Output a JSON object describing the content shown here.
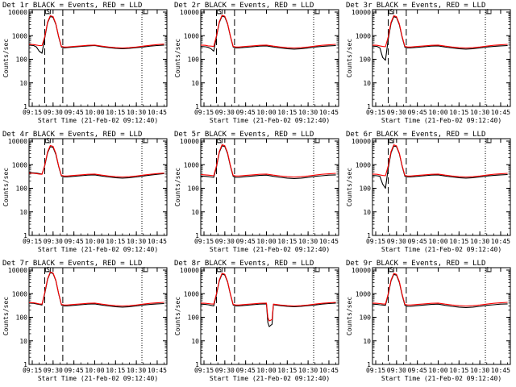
{
  "time_label": "Start Time (21-Feb-02 09:12:40)",
  "ylabel": "Counts/sec",
  "x_ticks": [
    "09:15",
    "09:30",
    "09:45",
    "10:00",
    "10:15",
    "10:30",
    "10:45"
  ],
  "y_ticks": [
    "1",
    "10",
    "100",
    "1000",
    "10000"
  ],
  "colors": {
    "events": "#000000",
    "lld": "#ff0000"
  },
  "markers": {
    "left_box_label": "S",
    "right_box_label": "L"
  },
  "chart_data": [
    {
      "type": "line",
      "title": "Det 1r BLACK = Events, RED = LLD",
      "y_scale": "log",
      "ylim": [
        1,
        10000
      ],
      "x": [
        "09:12:40",
        "09:16",
        "09:18",
        "09:20",
        "09:22",
        "09:24",
        "09:26",
        "09:28",
        "09:30",
        "09:32",
        "09:34",
        "09:36",
        "09:38",
        "09:40",
        "09:45",
        "09:50",
        "09:55",
        "10:00",
        "10:05",
        "10:10",
        "10:15",
        "10:20",
        "10:25",
        "10:30",
        "10:35",
        "10:40",
        "10:45",
        "10:50"
      ],
      "series": [
        {
          "name": "BLACK = Events",
          "values": [
            400,
            380,
            330,
            220,
            180,
            800,
            3500,
            6500,
            6000,
            3000,
            900,
            330,
            300,
            310,
            330,
            350,
            370,
            380,
            340,
            310,
            290,
            280,
            290,
            310,
            330,
            360,
            380,
            400
          ]
        },
        {
          "name": "RED = LLD",
          "values": [
            430,
            420,
            400,
            380,
            380,
            900,
            3800,
            7000,
            6500,
            3200,
            950,
            350,
            330,
            330,
            350,
            370,
            390,
            400,
            360,
            330,
            310,
            300,
            310,
            330,
            360,
            390,
            420,
            440
          ]
        }
      ]
    },
    {
      "type": "line",
      "title": "Det 2r BLACK = Events, RED = LLD",
      "y_scale": "log",
      "ylim": [
        1,
        10000
      ],
      "x": [
        "09:12:40",
        "09:16",
        "09:18",
        "09:20",
        "09:22",
        "09:24",
        "09:26",
        "09:28",
        "09:30",
        "09:32",
        "09:34",
        "09:36",
        "09:38",
        "09:40",
        "09:45",
        "09:50",
        "09:55",
        "10:00",
        "10:05",
        "10:10",
        "10:15",
        "10:20",
        "10:25",
        "10:30",
        "10:35",
        "10:40",
        "10:45",
        "10:50"
      ],
      "series": [
        {
          "name": "BLACK = Events",
          "values": [
            350,
            340,
            320,
            280,
            220,
            900,
            3600,
            6800,
            6200,
            3100,
            950,
            330,
            300,
            300,
            320,
            340,
            360,
            370,
            330,
            300,
            280,
            270,
            280,
            300,
            330,
            350,
            370,
            380
          ]
        },
        {
          "name": "RED = LLD",
          "values": [
            400,
            390,
            370,
            360,
            350,
            1000,
            3900,
            7300,
            6700,
            3300,
            1000,
            350,
            330,
            330,
            350,
            370,
            390,
            400,
            360,
            330,
            310,
            300,
            310,
            330,
            360,
            390,
            410,
            430
          ]
        }
      ]
    },
    {
      "type": "line",
      "title": "Det 3r BLACK = Events, RED = LLD",
      "y_scale": "log",
      "ylim": [
        1,
        10000
      ],
      "x": [
        "09:12:40",
        "09:16",
        "09:18",
        "09:20",
        "09:22",
        "09:24",
        "09:26",
        "09:28",
        "09:30",
        "09:32",
        "09:34",
        "09:36",
        "09:38",
        "09:40",
        "09:45",
        "09:50",
        "09:55",
        "10:00",
        "10:05",
        "10:10",
        "10:15",
        "10:20",
        "10:25",
        "10:30",
        "10:35",
        "10:40",
        "10:45",
        "10:50"
      ],
      "series": [
        {
          "name": "BLACK = Events",
          "values": [
            360,
            350,
            300,
            120,
            90,
            700,
            3300,
            6400,
            5900,
            2900,
            880,
            320,
            300,
            300,
            320,
            340,
            360,
            370,
            330,
            300,
            280,
            270,
            280,
            300,
            330,
            350,
            370,
            380
          ]
        },
        {
          "name": "RED = LLD",
          "values": [
            400,
            390,
            370,
            350,
            340,
            900,
            3700,
            7000,
            6400,
            3200,
            950,
            350,
            330,
            330,
            350,
            370,
            390,
            400,
            360,
            330,
            310,
            300,
            310,
            330,
            360,
            390,
            410,
            430
          ]
        }
      ]
    },
    {
      "type": "line",
      "title": "Det 4r BLACK = Events, RED = LLD",
      "y_scale": "log",
      "ylim": [
        1,
        10000
      ],
      "x": [
        "09:12:40",
        "09:16",
        "09:18",
        "09:20",
        "09:22",
        "09:24",
        "09:26",
        "09:28",
        "09:30",
        "09:32",
        "09:34",
        "09:36",
        "09:38",
        "09:40",
        "09:45",
        "09:50",
        "09:55",
        "10:00",
        "10:05",
        "10:10",
        "10:15",
        "10:20",
        "10:25",
        "10:30",
        "10:35",
        "10:40",
        "10:45",
        "10:50"
      ],
      "series": [
        {
          "name": "BLACK = Events",
          "values": [
            460,
            450,
            440,
            420,
            400,
            900,
            3200,
            5800,
            5400,
            2700,
            850,
            330,
            300,
            300,
            320,
            340,
            360,
            370,
            330,
            300,
            280,
            270,
            280,
            300,
            330,
            360,
            390,
            420
          ]
        },
        {
          "name": "RED = LLD",
          "values": [
            440,
            430,
            420,
            400,
            390,
            950,
            3500,
            6500,
            6000,
            3000,
            900,
            350,
            330,
            330,
            350,
            370,
            390,
            400,
            360,
            330,
            310,
            300,
            310,
            330,
            360,
            390,
            420,
            440
          ]
        }
      ]
    },
    {
      "type": "line",
      "title": "Det 5r BLACK = Events, RED = LLD",
      "y_scale": "log",
      "ylim": [
        1,
        10000
      ],
      "x": [
        "09:12:40",
        "09:16",
        "09:18",
        "09:20",
        "09:22",
        "09:24",
        "09:26",
        "09:28",
        "09:30",
        "09:32",
        "09:34",
        "09:36",
        "09:38",
        "09:40",
        "09:45",
        "09:50",
        "09:55",
        "10:00",
        "10:05",
        "10:10",
        "10:15",
        "10:20",
        "10:25",
        "10:30",
        "10:35",
        "10:40",
        "10:45",
        "10:50"
      ],
      "series": [
        {
          "name": "BLACK = Events",
          "values": [
            330,
            320,
            310,
            300,
            290,
            800,
            3300,
            6300,
            5900,
            2900,
            880,
            320,
            290,
            290,
            310,
            330,
            350,
            360,
            320,
            290,
            270,
            260,
            270,
            290,
            320,
            340,
            360,
            370
          ]
        },
        {
          "name": "RED = LLD",
          "values": [
            380,
            370,
            360,
            350,
            340,
            900,
            3600,
            7000,
            6400,
            3200,
            950,
            350,
            330,
            330,
            350,
            370,
            390,
            400,
            360,
            330,
            310,
            300,
            310,
            330,
            360,
            390,
            410,
            430
          ]
        }
      ]
    },
    {
      "type": "line",
      "title": "Det 6r BLACK = Events, RED = LLD",
      "y_scale": "log",
      "ylim": [
        1,
        10000
      ],
      "x": [
        "09:12:40",
        "09:16",
        "09:18",
        "09:20",
        "09:22",
        "09:24",
        "09:26",
        "09:28",
        "09:30",
        "09:32",
        "09:34",
        "09:36",
        "09:38",
        "09:40",
        "09:45",
        "09:50",
        "09:55",
        "10:00",
        "10:05",
        "10:10",
        "10:15",
        "10:20",
        "10:25",
        "10:30",
        "10:35",
        "10:40",
        "10:45",
        "10:50"
      ],
      "series": [
        {
          "name": "BLACK = Events",
          "values": [
            350,
            340,
            320,
            150,
            100,
            700,
            3200,
            6200,
            5800,
            2900,
            880,
            320,
            300,
            300,
            320,
            340,
            360,
            370,
            330,
            300,
            280,
            270,
            280,
            300,
            330,
            350,
            370,
            380
          ]
        },
        {
          "name": "RED = LLD",
          "values": [
            400,
            390,
            370,
            350,
            340,
            900,
            3600,
            6900,
            6300,
            3100,
            940,
            350,
            330,
            330,
            350,
            370,
            390,
            400,
            360,
            330,
            310,
            300,
            310,
            330,
            360,
            390,
            410,
            430
          ]
        }
      ]
    },
    {
      "type": "line",
      "title": "Det 7r BLACK = Events, RED = LLD",
      "y_scale": "log",
      "ylim": [
        1,
        10000
      ],
      "x": [
        "09:12:40",
        "09:16",
        "09:18",
        "09:20",
        "09:22",
        "09:24",
        "09:26",
        "09:28",
        "09:30",
        "09:32",
        "09:34",
        "09:36",
        "09:38",
        "09:40",
        "09:45",
        "09:50",
        "09:55",
        "10:00",
        "10:05",
        "10:10",
        "10:15",
        "10:20",
        "10:25",
        "10:30",
        "10:35",
        "10:40",
        "10:45",
        "10:50"
      ],
      "series": [
        {
          "name": "BLACK = Events",
          "values": [
            400,
            390,
            370,
            350,
            330,
            1000,
            4000,
            7800,
            7200,
            3500,
            1000,
            330,
            300,
            300,
            320,
            340,
            360,
            370,
            330,
            300,
            280,
            270,
            280,
            300,
            330,
            350,
            370,
            380
          ]
        },
        {
          "name": "RED = LLD",
          "values": [
            420,
            410,
            390,
            370,
            360,
            1100,
            4300,
            8300,
            7600,
            3700,
            1050,
            350,
            330,
            330,
            350,
            370,
            390,
            400,
            360,
            330,
            310,
            300,
            310,
            330,
            360,
            390,
            410,
            430
          ]
        }
      ]
    },
    {
      "type": "line",
      "title": "Det 8r BLACK = Events, RED = LLD",
      "y_scale": "log",
      "ylim": [
        1,
        10000
      ],
      "x": [
        "09:12:40",
        "09:16",
        "09:18",
        "09:20",
        "09:22",
        "09:24",
        "09:26",
        "09:28",
        "09:30",
        "09:32",
        "09:34",
        "09:36",
        "09:38",
        "09:40",
        "09:45",
        "09:50",
        "09:55",
        "10:00",
        "10:01",
        "10:02",
        "10:03",
        "10:04",
        "10:05",
        "10:10",
        "10:15",
        "10:20",
        "10:25",
        "10:30",
        "10:35",
        "10:40",
        "10:45",
        "10:50"
      ],
      "series": [
        {
          "name": "BLACK = Events",
          "values": [
            360,
            350,
            340,
            320,
            300,
            900,
            3500,
            6800,
            6200,
            3100,
            950,
            330,
            300,
            300,
            320,
            340,
            360,
            370,
            60,
            40,
            45,
            50,
            340,
            310,
            290,
            280,
            290,
            310,
            330,
            360,
            380,
            400
          ]
        },
        {
          "name": "RED = LLD",
          "values": [
            400,
            390,
            380,
            370,
            360,
            1000,
            3800,
            7300,
            6700,
            3300,
            1000,
            350,
            330,
            330,
            350,
            370,
            390,
            400,
            100,
            70,
            75,
            80,
            360,
            330,
            310,
            300,
            310,
            330,
            360,
            390,
            410,
            430
          ]
        }
      ]
    },
    {
      "type": "line",
      "title": "Det 9r BLACK = Events, RED = LLD",
      "y_scale": "log",
      "ylim": [
        1,
        10000
      ],
      "x": [
        "09:12:40",
        "09:16",
        "09:18",
        "09:20",
        "09:22",
        "09:24",
        "09:26",
        "09:28",
        "09:30",
        "09:32",
        "09:34",
        "09:36",
        "09:38",
        "09:40",
        "09:45",
        "09:50",
        "09:55",
        "10:00",
        "10:05",
        "10:10",
        "10:15",
        "10:20",
        "10:25",
        "10:30",
        "10:35",
        "10:40",
        "10:45",
        "10:50"
      ],
      "series": [
        {
          "name": "BLACK = Events",
          "values": [
            360,
            350,
            340,
            330,
            320,
            900,
            3500,
            6600,
            6100,
            3000,
            900,
            320,
            290,
            290,
            310,
            330,
            350,
            360,
            320,
            290,
            270,
            260,
            270,
            290,
            320,
            340,
            360,
            370
          ]
        },
        {
          "name": "RED = LLD",
          "values": [
            400,
            390,
            380,
            370,
            360,
            1000,
            3800,
            7200,
            6600,
            3300,
            980,
            350,
            330,
            330,
            350,
            370,
            390,
            400,
            360,
            330,
            310,
            300,
            310,
            330,
            360,
            390,
            410,
            430
          ]
        }
      ]
    }
  ]
}
